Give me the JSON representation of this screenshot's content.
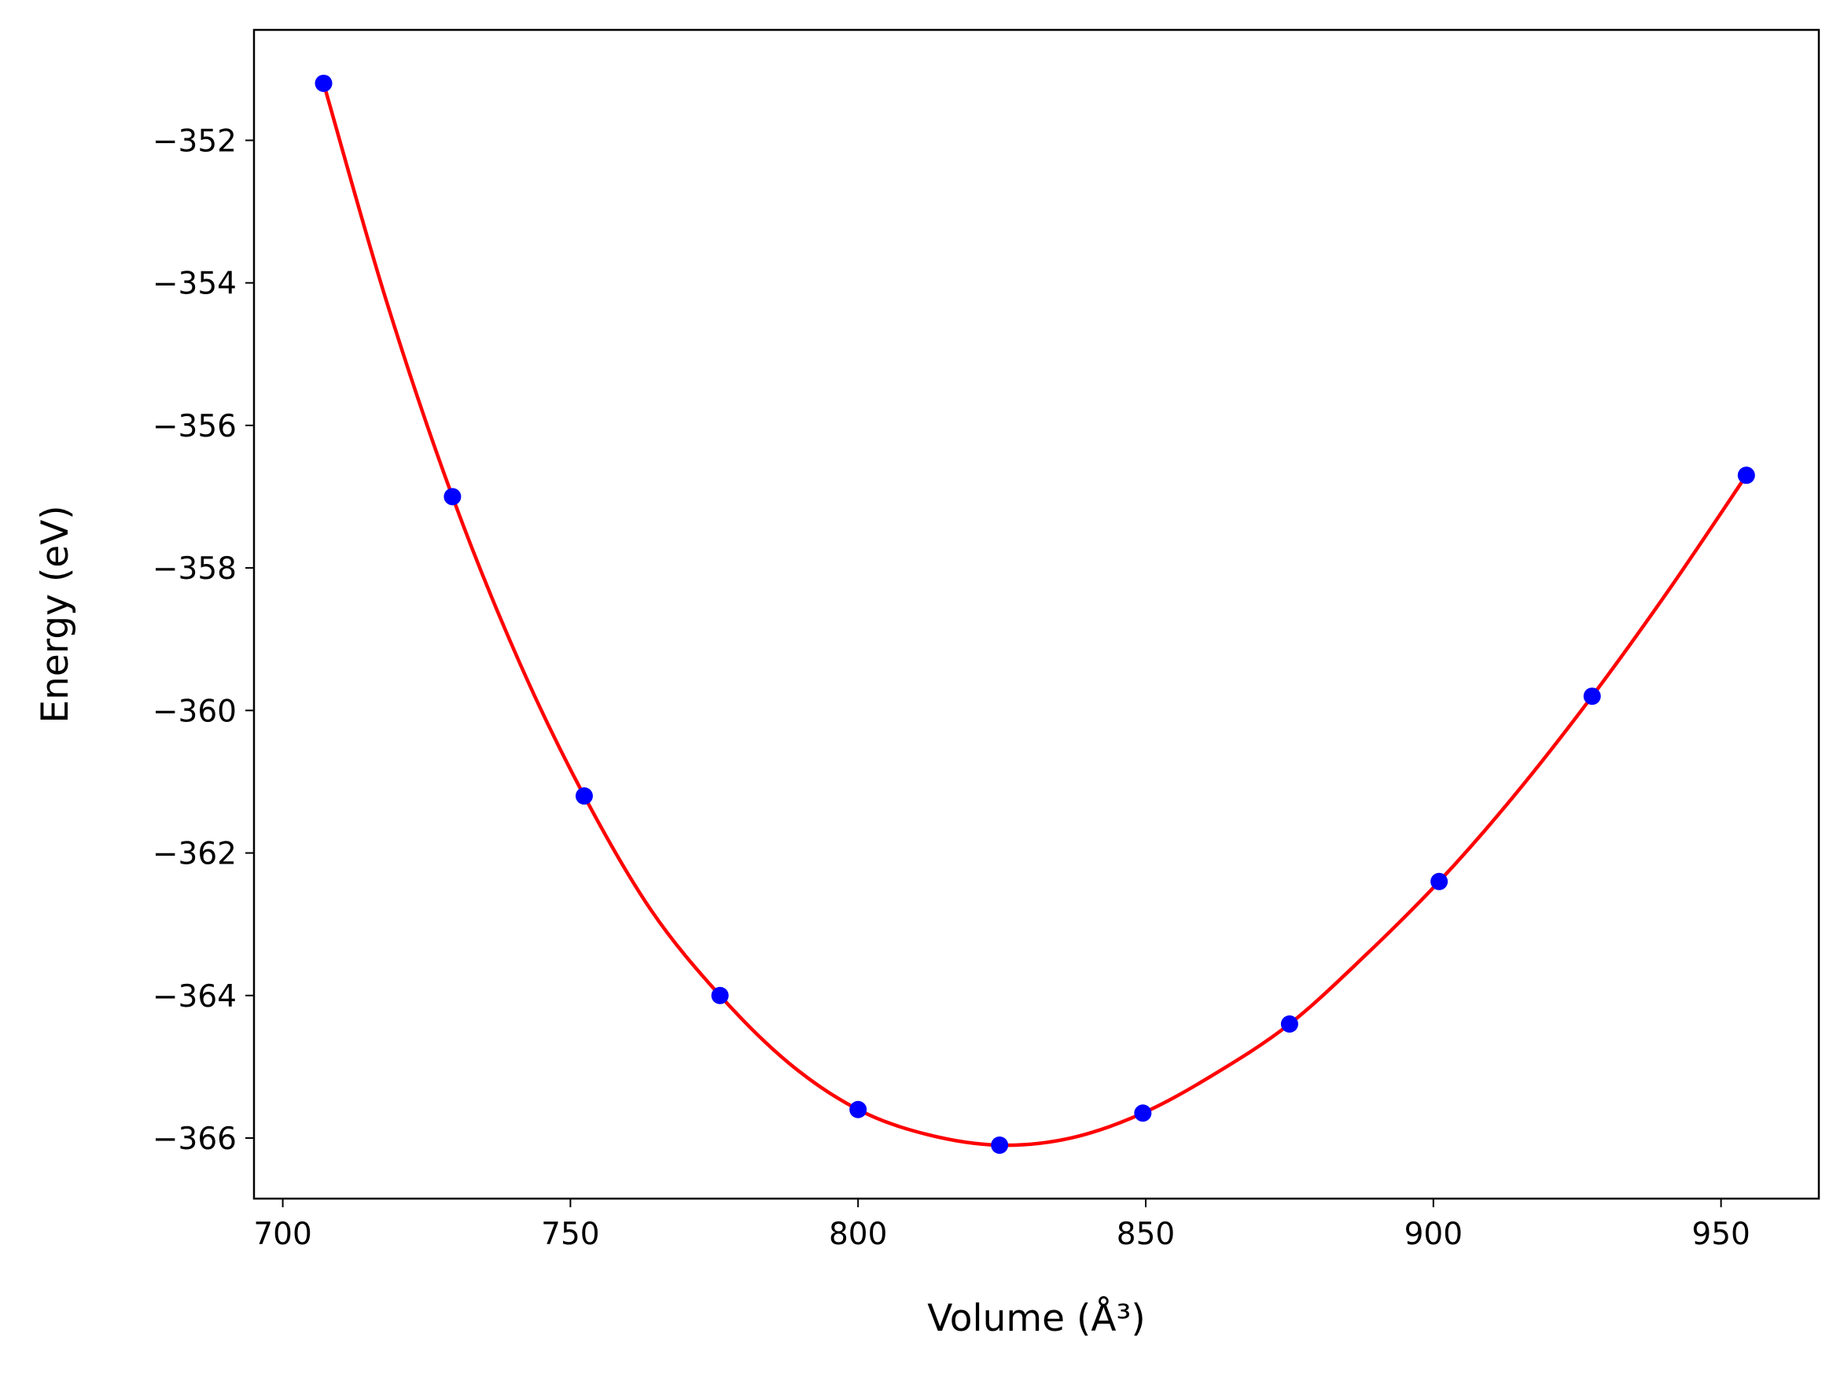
{
  "chart_data": {
    "type": "line",
    "title": "",
    "xlabel": "Volume (Å³)",
    "ylabel": "Energy (eV)",
    "xlim": [
      695,
      967
    ],
    "ylim": [
      -366.85,
      -350.45
    ],
    "xticks": [
      700,
      750,
      800,
      850,
      900,
      950
    ],
    "xtick_labels": [
      "700",
      "750",
      "800",
      "850",
      "900",
      "950"
    ],
    "yticks": [
      -352,
      -354,
      -356,
      -358,
      -360,
      -362,
      -364,
      -366
    ],
    "ytick_labels": [
      "−352",
      "−354",
      "−356",
      "−358",
      "−360",
      "−362",
      "−364",
      "−366"
    ],
    "grid": false,
    "legend": "none",
    "series": [
      {
        "kind": "points",
        "color": "#0000ff",
        "x": [
          707.1,
          729.5,
          752.4,
          776.0,
          800.0,
          824.6,
          849.5,
          875.0,
          901.0,
          927.6,
          954.4
        ],
        "y": [
          -351.2,
          -357.0,
          -361.2,
          -364.0,
          -365.6,
          -366.1,
          -365.65,
          -364.4,
          -362.4,
          -359.8,
          -356.7
        ]
      },
      {
        "kind": "fit-curve",
        "color": "#ff0000",
        "x": [
          707.1,
          718.0,
          729.5,
          741.0,
          752.4,
          764.0,
          776.0,
          788.0,
          800.0,
          812.0,
          824.6,
          837.0,
          849.5,
          862.0,
          875.0,
          888.0,
          901.0,
          914.0,
          927.6,
          941.0,
          954.4
        ],
        "y": [
          -351.2,
          -354.25,
          -357.0,
          -359.3,
          -361.2,
          -362.8,
          -364.0,
          -364.95,
          -365.6,
          -365.95,
          -366.1,
          -366.0,
          -365.65,
          -365.1,
          -364.4,
          -363.45,
          -362.4,
          -361.2,
          -359.8,
          -358.3,
          -356.7
        ]
      }
    ]
  }
}
